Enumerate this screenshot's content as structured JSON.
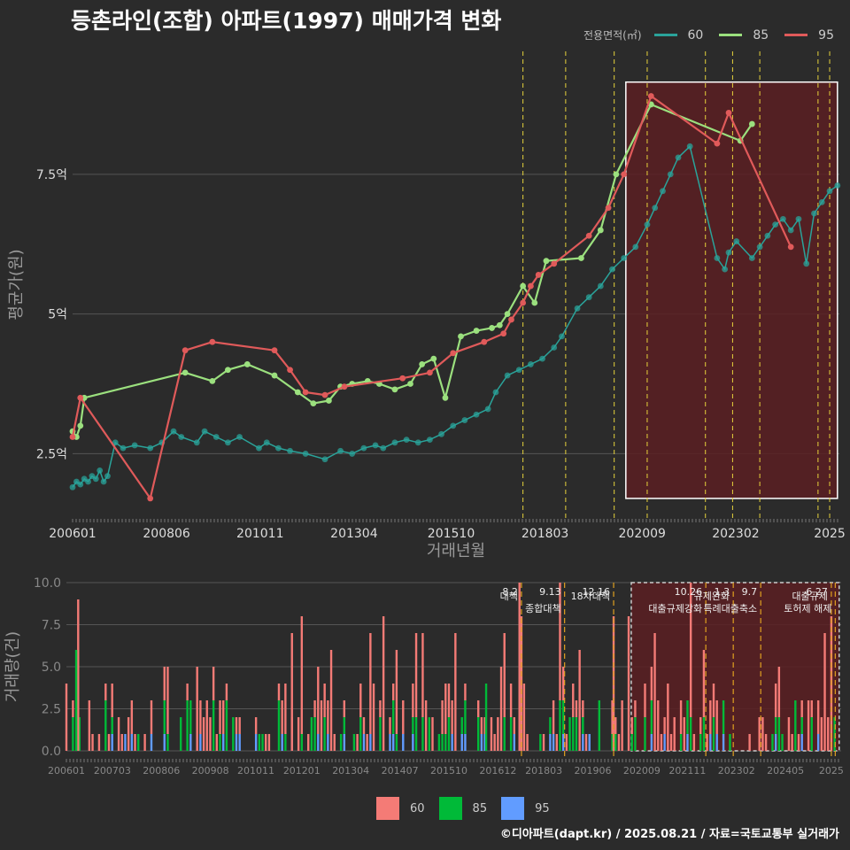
{
  "title": "등촌라인(조합) 아파트(1997) 매매가격 변화",
  "legend_title": "전용면적(㎡)",
  "footer": "©디아파트(dapt.kr) / 2025.08.21 / 자료=국토교통부 실거래가",
  "colors": {
    "background": "#2b2b2b",
    "s60_line": "#2aa39a",
    "s85_line": "#9be07e",
    "s95_line": "#e05a5a",
    "bar60": "#f47b76",
    "bar85": "#00ba38",
    "bar95": "#619cff",
    "policy_line": "#e6d23c",
    "highlight": "#5a1f22"
  },
  "chart_data": [
    {
      "type": "line",
      "ylabel": "평균가(원)",
      "xlabel": "거래년월",
      "y_ticks": [
        {
          "v": 25000,
          "label": "2.5억"
        },
        {
          "v": 50000,
          "label": "5억"
        },
        {
          "v": 75000,
          "label": "7.5억"
        }
      ],
      "ylim": [
        13500,
        97000
      ],
      "xlim": [
        2006.0,
        2025.75
      ],
      "x_ticks": [
        {
          "v": 2006.0,
          "label": "200601"
        },
        {
          "v": 2008.42,
          "label": "200806"
        },
        {
          "v": 2010.83,
          "label": "201011"
        },
        {
          "v": 2013.25,
          "label": "201304"
        },
        {
          "v": 2015.75,
          "label": "201510"
        },
        {
          "v": 2018.17,
          "label": "201803"
        },
        {
          "v": 2020.67,
          "label": "202009"
        },
        {
          "v": 2023.08,
          "label": "202302"
        },
        {
          "v": 2025.5,
          "label": "2025"
        }
      ],
      "series": [
        {
          "name": "60",
          "points": [
            [
              2006.0,
              19000
            ],
            [
              2006.1,
              20000
            ],
            [
              2006.2,
              19500
            ],
            [
              2006.3,
              20500
            ],
            [
              2006.4,
              20000
            ],
            [
              2006.5,
              21000
            ],
            [
              2006.6,
              20500
            ],
            [
              2006.7,
              22000
            ],
            [
              2006.8,
              20000
            ],
            [
              2006.9,
              21000
            ],
            [
              2007.1,
              27000
            ],
            [
              2007.3,
              26000
            ],
            [
              2007.6,
              26500
            ],
            [
              2008.0,
              26000
            ],
            [
              2008.3,
              27000
            ],
            [
              2008.6,
              29000
            ],
            [
              2008.8,
              28000
            ],
            [
              2009.2,
              27000
            ],
            [
              2009.4,
              29000
            ],
            [
              2009.7,
              28000
            ],
            [
              2010.0,
              27000
            ],
            [
              2010.3,
              28000
            ],
            [
              2010.8,
              26000
            ],
            [
              2011.0,
              27000
            ],
            [
              2011.3,
              26000
            ],
            [
              2011.6,
              25500
            ],
            [
              2012.0,
              25000
            ],
            [
              2012.5,
              24000
            ],
            [
              2012.9,
              25500
            ],
            [
              2013.2,
              25000
            ],
            [
              2013.5,
              26000
            ],
            [
              2013.8,
              26500
            ],
            [
              2014.0,
              26000
            ],
            [
              2014.3,
              27000
            ],
            [
              2014.6,
              27500
            ],
            [
              2014.9,
              27000
            ],
            [
              2015.2,
              27500
            ],
            [
              2015.5,
              28500
            ],
            [
              2015.8,
              30000
            ],
            [
              2016.1,
              31000
            ],
            [
              2016.4,
              32000
            ],
            [
              2016.7,
              33000
            ],
            [
              2016.9,
              36000
            ],
            [
              2017.2,
              39000
            ],
            [
              2017.5,
              40000
            ],
            [
              2017.8,
              41000
            ],
            [
              2018.1,
              42000
            ],
            [
              2018.4,
              44000
            ],
            [
              2018.6,
              46000
            ],
            [
              2019.0,
              51000
            ],
            [
              2019.3,
              53000
            ],
            [
              2019.6,
              55000
            ],
            [
              2019.9,
              58000
            ],
            [
              2020.2,
              60000
            ],
            [
              2020.5,
              62000
            ],
            [
              2020.8,
              66000
            ],
            [
              2021.0,
              69000
            ],
            [
              2021.2,
              72000
            ],
            [
              2021.4,
              75000
            ],
            [
              2021.6,
              78000
            ],
            [
              2021.9,
              80000
            ],
            [
              2022.6,
              60000
            ],
            [
              2022.8,
              58000
            ],
            [
              2022.9,
              61000
            ],
            [
              2023.1,
              63000
            ],
            [
              2023.5,
              60000
            ],
            [
              2023.7,
              62000
            ],
            [
              2023.9,
              64000
            ],
            [
              2024.1,
              66000
            ],
            [
              2024.3,
              67000
            ],
            [
              2024.5,
              65000
            ],
            [
              2024.7,
              67000
            ],
            [
              2024.9,
              59000
            ],
            [
              2025.1,
              68000
            ],
            [
              2025.3,
              70000
            ],
            [
              2025.5,
              72000
            ],
            [
              2025.7,
              73000
            ]
          ]
        },
        {
          "name": "85",
          "points": [
            [
              2006.0,
              29000
            ],
            [
              2006.1,
              28000
            ],
            [
              2006.2,
              30000
            ],
            [
              2006.3,
              35000
            ],
            [
              2008.9,
              39500
            ],
            [
              2009.6,
              38000
            ],
            [
              2010.0,
              40000
            ],
            [
              2010.5,
              41000
            ],
            [
              2011.2,
              39000
            ],
            [
              2011.8,
              36000
            ],
            [
              2012.2,
              34000
            ],
            [
              2012.6,
              34500
            ],
            [
              2012.9,
              37000
            ],
            [
              2013.2,
              37500
            ],
            [
              2013.6,
              38000
            ],
            [
              2013.9,
              37500
            ],
            [
              2014.3,
              36500
            ],
            [
              2014.7,
              37500
            ],
            [
              2015.0,
              41000
            ],
            [
              2015.3,
              42000
            ],
            [
              2015.6,
              35000
            ],
            [
              2016.0,
              46000
            ],
            [
              2016.4,
              47000
            ],
            [
              2016.8,
              47500
            ],
            [
              2017.0,
              48000
            ],
            [
              2017.2,
              50000
            ],
            [
              2017.6,
              55000
            ],
            [
              2017.9,
              52000
            ],
            [
              2018.2,
              59500
            ],
            [
              2019.1,
              60000
            ],
            [
              2019.6,
              65000
            ],
            [
              2020.0,
              75000
            ],
            [
              2020.9,
              87500
            ],
            [
              2023.2,
              81000
            ],
            [
              2023.5,
              84000
            ]
          ]
        },
        {
          "name": "95",
          "points": [
            [
              2006.0,
              28000
            ],
            [
              2006.2,
              35000
            ],
            [
              2008.0,
              17000
            ],
            [
              2008.9,
              43500
            ],
            [
              2009.6,
              45000
            ],
            [
              2011.2,
              43500
            ],
            [
              2011.6,
              40000
            ],
            [
              2012.0,
              36000
            ],
            [
              2012.5,
              35500
            ],
            [
              2013.0,
              37000
            ],
            [
              2014.5,
              38500
            ],
            [
              2015.2,
              39500
            ],
            [
              2015.8,
              43000
            ],
            [
              2016.6,
              45000
            ],
            [
              2017.1,
              46500
            ],
            [
              2017.3,
              49000
            ],
            [
              2017.6,
              52000
            ],
            [
              2017.8,
              55000
            ],
            [
              2018.0,
              57000
            ],
            [
              2018.4,
              59000
            ],
            [
              2019.3,
              64000
            ],
            [
              2019.8,
              69000
            ],
            [
              2020.2,
              75000
            ],
            [
              2020.9,
              89000
            ],
            [
              2022.6,
              80500
            ],
            [
              2022.9,
              86000
            ],
            [
              2024.5,
              62000
            ]
          ]
        }
      ],
      "policy_lines": [
        2017.6,
        2018.7,
        2019.95,
        2020.8,
        2022.3,
        2023.0,
        2023.7,
        2025.2,
        2025.5
      ],
      "highlight": {
        "x0": 2020.25,
        "x1": 2025.7,
        "y0": 17000,
        "y1": 91500
      }
    },
    {
      "type": "bar",
      "ylabel": "거래량(건)",
      "ylim": [
        0,
        10
      ],
      "y_ticks": [
        {
          "v": 0,
          "label": "0.0"
        },
        {
          "v": 2.5,
          "label": "2.5"
        },
        {
          "v": 5,
          "label": "5.0"
        },
        {
          "v": 7.5,
          "label": "7.5"
        },
        {
          "v": 10,
          "label": "10.0"
        }
      ],
      "x_ticks": [
        {
          "v": 2006.0,
          "label": "200601"
        },
        {
          "v": 2007.17,
          "label": "200703"
        },
        {
          "v": 2008.42,
          "label": "200806"
        },
        {
          "v": 2009.67,
          "label": "200908"
        },
        {
          "v": 2010.83,
          "label": "201011"
        },
        {
          "v": 2012.0,
          "label": "201201"
        },
        {
          "v": 2013.25,
          "label": "201304"
        },
        {
          "v": 2014.5,
          "label": "201407"
        },
        {
          "v": 2015.75,
          "label": "201510"
        },
        {
          "v": 2017.0,
          "label": "201612"
        },
        {
          "v": 2018.17,
          "label": "201803"
        },
        {
          "v": 2019.42,
          "label": "201906"
        },
        {
          "v": 2020.67,
          "label": "202009"
        },
        {
          "v": 2021.83,
          "label": "202111"
        },
        {
          "v": 2023.08,
          "label": "202302"
        },
        {
          "v": 2024.33,
          "label": "202405"
        },
        {
          "v": 2025.5,
          "label": "2025"
        }
      ],
      "series_names": [
        "60",
        "85",
        "95"
      ],
      "policies": [
        {
          "x": 2017.6,
          "date": "8.2",
          "name": "대책"
        },
        {
          "x": 2018.7,
          "date": "9.13",
          "name": "종합대책"
        },
        {
          "x": 2019.95,
          "date": "12.16",
          "name": "18차대책"
        },
        {
          "x": 2022.3,
          "date": "10.26",
          "name": "대출규제강화"
        },
        {
          "x": 2023.0,
          "date": "1.3",
          "name": "규제완화"
        },
        {
          "x": 2023.7,
          "date": "9.7",
          "name": "특례대출축소"
        },
        {
          "x": 2025.5,
          "date": "6.27",
          "name": "대출규제"
        },
        {
          "x": 2025.6,
          "date": "",
          "name": "토허제 해제"
        }
      ]
    }
  ]
}
